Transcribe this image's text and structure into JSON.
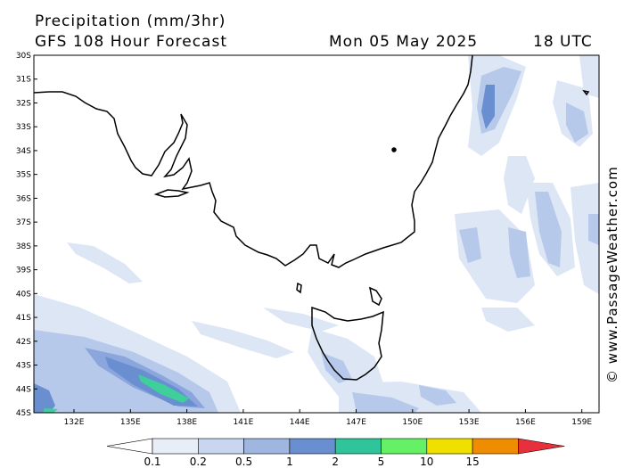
{
  "header": {
    "title": "Precipitation (mm/3hr)",
    "subtitle": "GFS 108 Hour Forecast",
    "date": "Mon 05 May 2025",
    "time": "18 UTC"
  },
  "watermark": "© www.PassageWeather.com",
  "axes": {
    "lat_labels": [
      "30S",
      "31S",
      "32S",
      "33S",
      "34S",
      "35S",
      "36S",
      "37S",
      "38S",
      "39S",
      "40S",
      "41S",
      "42S",
      "43S",
      "44S",
      "45S"
    ],
    "lon_labels": [
      "132E",
      "135E",
      "138E",
      "141E",
      "144E",
      "147E",
      "150E",
      "153E",
      "156E",
      "159E"
    ]
  },
  "colorbar": {
    "labels": [
      "0.1",
      "0.2",
      "0.5",
      "1",
      "2",
      "5",
      "10",
      "15"
    ],
    "colors": [
      "#e8eef8",
      "#c8d6ef",
      "#9fb7e0",
      "#6a8fd0",
      "#2fc49a",
      "#66f066",
      "#f0e000",
      "#f08c00",
      "#e8303c"
    ]
  },
  "precip_colors": {
    "light": "#dde6f5",
    "mid": "#b6c9ea",
    "strong": "#8aa6dc",
    "heavy": "#6a8fd0",
    "green": "#3fcf9a"
  }
}
